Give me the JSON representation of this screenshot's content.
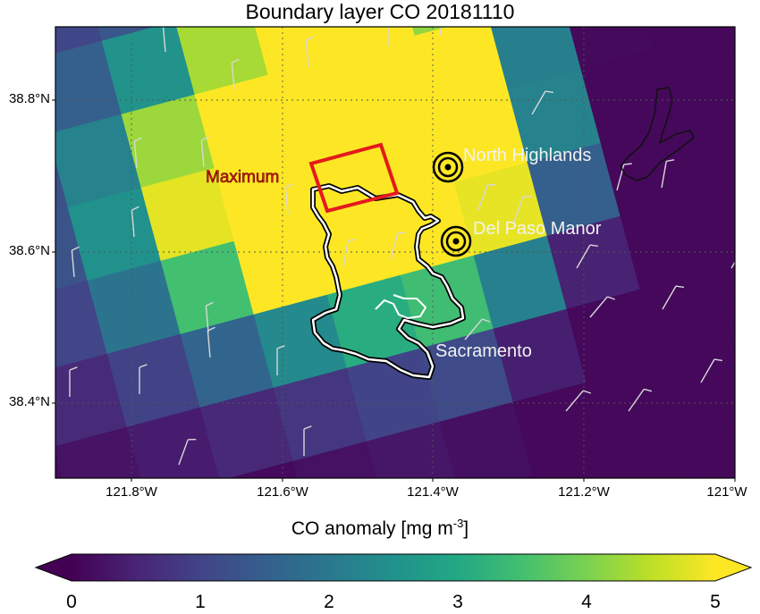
{
  "map": {
    "title": "Boundary layer CO 20181110",
    "lat_labels": [
      "38.8°N",
      "38.6°N",
      "38.4°N"
    ],
    "lon_labels": [
      "121.8°W",
      "121.6°W",
      "121.4°W",
      "121.2°W",
      "121°W"
    ],
    "lat_range": [
      38.3,
      38.9
    ],
    "lon_range": [
      -121.9,
      -121.0
    ],
    "features": {
      "maximum_label": "Maximum",
      "places": [
        {
          "name": "North Highlands",
          "type": "monitoring-site"
        },
        {
          "name": "Del Paso Manor",
          "type": "monitoring-site"
        },
        {
          "name": "Sacramento",
          "type": "city-boundary"
        }
      ]
    }
  },
  "colorbar": {
    "title": "CO anomaly [mg m",
    "title_exponent": "-3",
    "title_suffix": "]",
    "ticks": [
      "0",
      "1",
      "2",
      "3",
      "4",
      "5"
    ],
    "range": [
      0,
      5
    ],
    "colormap": "viridis",
    "extend": "both"
  },
  "colors": {
    "maximum_box": "#e41a1c",
    "wind_barbs": "#d8d8d8",
    "city_outline": "#ffffff"
  }
}
